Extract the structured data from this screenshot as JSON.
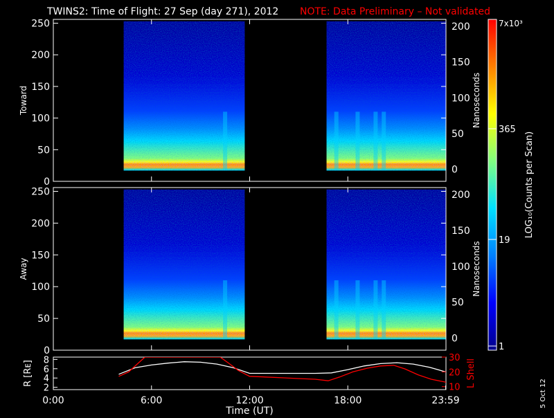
{
  "title": "TWINS2: Time of Flight: 27 Sep (day 271), 2012",
  "note": "NOTE: Data Preliminary – Not validated",
  "date_stamp": "5 Oct 12",
  "colors": {
    "background": "#000000",
    "axes": "#ffffff",
    "note": "#ff0000",
    "lshell": "#ff0000",
    "r_line": "#ffffff"
  },
  "colorbar": {
    "label": "LOG₁₀(Counts per Scan)",
    "top_label": "7x10³",
    "ticks": [
      "365",
      "19",
      "1"
    ],
    "colormap": [
      "#00008b",
      "#0000ff",
      "#0080ff",
      "#00e0ff",
      "#80ff80",
      "#ffff00",
      "#ff8000",
      "#ff0000"
    ]
  },
  "chart_data": [
    {
      "type": "heatmap",
      "panel": "Toward",
      "ylabel": "Toward",
      "y2label": "Nanoseconds",
      "ylim": [
        0,
        256
      ],
      "yticks": [
        "0",
        "50",
        "100",
        "150",
        "200",
        "250"
      ],
      "y2ticks": [
        "0",
        "50",
        "100",
        "150",
        "200"
      ],
      "data_intervals_hours": [
        [
          4.3,
          11.7
        ],
        [
          16.7,
          24.0
        ]
      ],
      "band_center": 27,
      "spike_hours": [
        10.5,
        17.3,
        18.6,
        19.7,
        20.2
      ]
    },
    {
      "type": "heatmap",
      "panel": "Away",
      "ylabel": "Away",
      "y2label": "Nanoseconds",
      "ylim": [
        0,
        256
      ],
      "yticks": [
        "0",
        "50",
        "100",
        "150",
        "200",
        "250"
      ],
      "y2ticks": [
        "0",
        "50",
        "100",
        "150",
        "200"
      ],
      "data_intervals_hours": [
        [
          4.3,
          11.7
        ],
        [
          16.7,
          24.0
        ]
      ],
      "band_center": 27,
      "spike_hours": [
        10.5,
        17.3,
        18.6,
        19.7,
        20.2
      ]
    },
    {
      "type": "line",
      "ylabel": "R [Rᴇ]",
      "y2label": "L Shell",
      "ylim": [
        1.5,
        8.5
      ],
      "y2lim": [
        8,
        30
      ],
      "yticks": [
        "2",
        "4",
        "6",
        "8"
      ],
      "y2ticks": [
        "10",
        "20",
        "30"
      ],
      "xlabel": "Time (UT)",
      "xticks": [
        "0:00",
        "6:00",
        "12:00",
        "18:00",
        "23:59"
      ],
      "xtick_hours": [
        0,
        6,
        12,
        18,
        23.98
      ],
      "series": [
        {
          "name": "R",
          "x": [
            4.0,
            5,
            6,
            7,
            8,
            9,
            10,
            11,
            12,
            13,
            14,
            15,
            16,
            17,
            18,
            19,
            20,
            21,
            22,
            23,
            24
          ],
          "y": [
            4.8,
            6.2,
            6.8,
            7.2,
            7.5,
            7.4,
            7.0,
            6.2,
            5.0,
            5.0,
            5.0,
            5.0,
            5.0,
            5.1,
            5.8,
            6.6,
            7.1,
            7.3,
            7.0,
            6.3,
            5.3
          ]
        },
        {
          "name": "L Shell",
          "x": [
            4.0,
            4.6,
            5.2,
            5.6,
            10.2,
            10.7,
            11.3,
            12.0,
            13,
            14,
            15,
            16,
            16.8,
            17.5,
            18.3,
            19.2,
            20,
            20.8,
            21.5,
            22.3,
            23.1,
            24
          ],
          "y": [
            17,
            20,
            26,
            30,
            30,
            26,
            21,
            17,
            16.5,
            16,
            15.5,
            15,
            14,
            16.5,
            20,
            22.5,
            24,
            24.5,
            22,
            18,
            15,
            13
          ]
        }
      ]
    }
  ]
}
